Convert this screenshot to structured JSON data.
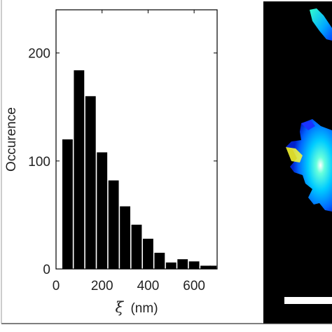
{
  "chart_data": {
    "type": "bar",
    "xlabel_symbol": "ξ",
    "xlabel_unit": "(nm)",
    "ylabel": "Occurence",
    "x_ticks": [
      0,
      200,
      400,
      600
    ],
    "y_ticks": [
      0,
      100,
      200
    ],
    "xlim": [
      0,
      700
    ],
    "ylim": [
      0,
      240
    ],
    "bin_width": 50,
    "bins": [
      {
        "x": 50,
        "value": 120
      },
      {
        "x": 100,
        "value": 184
      },
      {
        "x": 150,
        "value": 160
      },
      {
        "x": 200,
        "value": 108
      },
      {
        "x": 250,
        "value": 82
      },
      {
        "x": 300,
        "value": 58
      },
      {
        "x": 350,
        "value": 41
      },
      {
        "x": 400,
        "value": 28
      },
      {
        "x": 450,
        "value": 15
      },
      {
        "x": 500,
        "value": 6
      },
      {
        "x": 550,
        "value": 9
      },
      {
        "x": 600,
        "value": 7
      },
      {
        "x": 650,
        "value": 3
      },
      {
        "x": 690,
        "value": 3
      }
    ],
    "bar_color": "#000000",
    "grid": false
  },
  "image_panel": {
    "background": "#000000",
    "colors": [
      "#00e5ff",
      "#33ff99",
      "#ffff33",
      "#00aaff",
      "#1a33ff"
    ]
  }
}
